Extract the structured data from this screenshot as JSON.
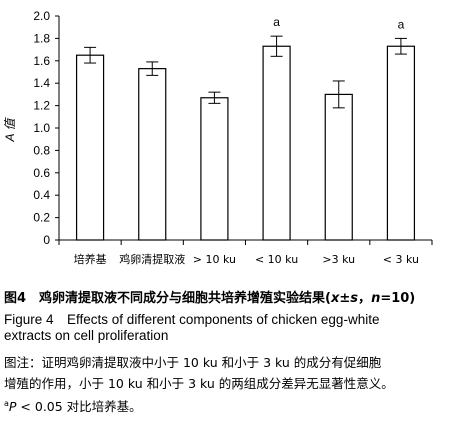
{
  "chart_data": {
    "type": "bar",
    "categories": [
      "培养基",
      "鸡卵清提取液",
      "> 10 ku",
      "< 10 ku",
      ">3 ku",
      "< 3 ku"
    ],
    "values": [
      1.65,
      1.53,
      1.27,
      1.73,
      1.3,
      1.73
    ],
    "errors": [
      0.07,
      0.06,
      0.05,
      0.09,
      0.12,
      0.07
    ],
    "annotations": [
      "",
      "",
      "",
      "a",
      "",
      "a"
    ],
    "ylabel": "A 值",
    "ylim": [
      0,
      2.0
    ],
    "yticks": [
      "0",
      "0.2",
      "0.4",
      "0.6",
      "0.8",
      "1.0",
      "1.2",
      "1.4",
      "1.6",
      "1.8",
      "2.0"
    ],
    "grid": false,
    "colors": {
      "bar_fill": "#ffffff",
      "stroke": "#000000"
    }
  },
  "caption": {
    "zh_prefix": "图4　鸡卵清提取液不同成分与细胞共培养增殖实验结果(",
    "zh_stat": "x",
    "zh_pm": "±",
    "zh_s": "s",
    "zh_comma": "，",
    "zh_n": "n",
    "zh_suffix": "=10)",
    "en_line1": "Figure 4　Effects of different components of chicken egg-white",
    "en_line2": "extracts on cell proliferation",
    "note_line1": "图注：证明鸡卵清提取液中小于 10 ku 和小于 3 ku 的成分有促细胞",
    "note_line2": "增殖的作用，小于 10 ku 和小于 3 ku 的两组成分差异无显著性意义。",
    "note_sup": "a",
    "note_p": "P",
    "note_line3": " < 0.05 对比培养基。"
  }
}
